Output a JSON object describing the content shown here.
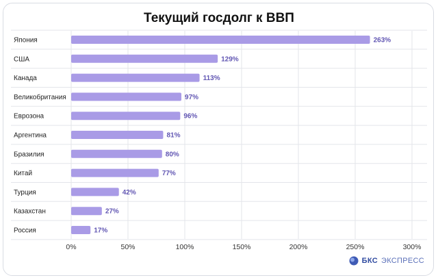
{
  "chart_data": {
    "type": "bar",
    "orientation": "horizontal",
    "title": "Текущий госдолг к ВВП",
    "categories": [
      "Япония",
      "США",
      "Канада",
      "Великобритания",
      "Еврозона",
      "Аргентина",
      "Бразилия",
      "Китай",
      "Турция",
      "Казахстан",
      "Россия"
    ],
    "values": [
      263,
      129,
      113,
      97,
      96,
      81,
      80,
      77,
      42,
      27,
      17
    ],
    "value_labels": [
      "263%",
      "129%",
      "113%",
      "97%",
      "96%",
      "81%",
      "80%",
      "77%",
      "42%",
      "27%",
      "17%"
    ],
    "xlim": [
      0,
      300
    ],
    "x_ticks": [
      "0%",
      "50%",
      "100%",
      "150%",
      "200%",
      "250%",
      "300%"
    ],
    "grid": true,
    "bar_color": "#a99be6",
    "value_label_color": "#6257b3"
  },
  "brand": {
    "name_bold": "БКС",
    "name_rest": "ЭКСПРЕСС"
  }
}
